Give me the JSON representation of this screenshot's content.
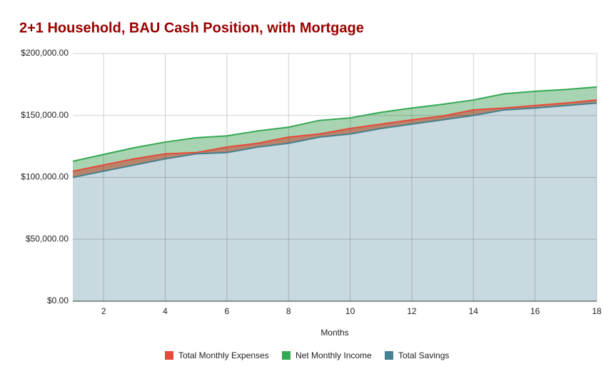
{
  "chart_data": {
    "type": "area",
    "title": "2+1 Household, BAU Cash Position, with Mortgage",
    "x_label": "Months",
    "x": [
      1,
      2,
      3,
      4,
      5,
      6,
      7,
      8,
      9,
      10,
      11,
      12,
      13,
      14,
      15,
      16,
      17,
      18
    ],
    "xlim": [
      1,
      18
    ],
    "xticks": [
      2,
      4,
      6,
      8,
      10,
      12,
      14,
      16,
      18
    ],
    "ylim": [
      0,
      200000
    ],
    "yticks": [
      {
        "value": 0,
        "label": "$0.00"
      },
      {
        "value": 50000,
        "label": "$50,000.00"
      },
      {
        "value": 100000,
        "label": "$100,000.00"
      },
      {
        "value": 150000,
        "label": "$150,000.00"
      },
      {
        "value": 200000,
        "label": "$200,000.00"
      }
    ],
    "grid": true,
    "legend": "bottom",
    "series": [
      {
        "name": "Total Monthly Expenses",
        "color": "#e8493a",
        "fill": "#b7846c",
        "values": [
          105000,
          110000,
          115000,
          119000,
          120000,
          124500,
          127500,
          132500,
          135000,
          139500,
          143000,
          146500,
          149500,
          154500,
          156000,
          158000,
          160000,
          162500
        ]
      },
      {
        "name": "Net Monthly Income",
        "color": "#34a853",
        "fill": "#a9d4b3",
        "values": [
          113000,
          118500,
          124000,
          128500,
          132000,
          133500,
          137500,
          140500,
          146000,
          148000,
          152500,
          156000,
          159000,
          162500,
          167500,
          169500,
          171000,
          173000
        ]
      },
      {
        "name": "Total Savings",
        "color": "#45818e",
        "fill": "#c8d9df",
        "values": [
          100000,
          105000,
          110000,
          115000,
          119000,
          120000,
          124500,
          127500,
          132500,
          135000,
          139500,
          143000,
          146500,
          150000,
          154500,
          156000,
          158000,
          160000
        ]
      }
    ]
  }
}
